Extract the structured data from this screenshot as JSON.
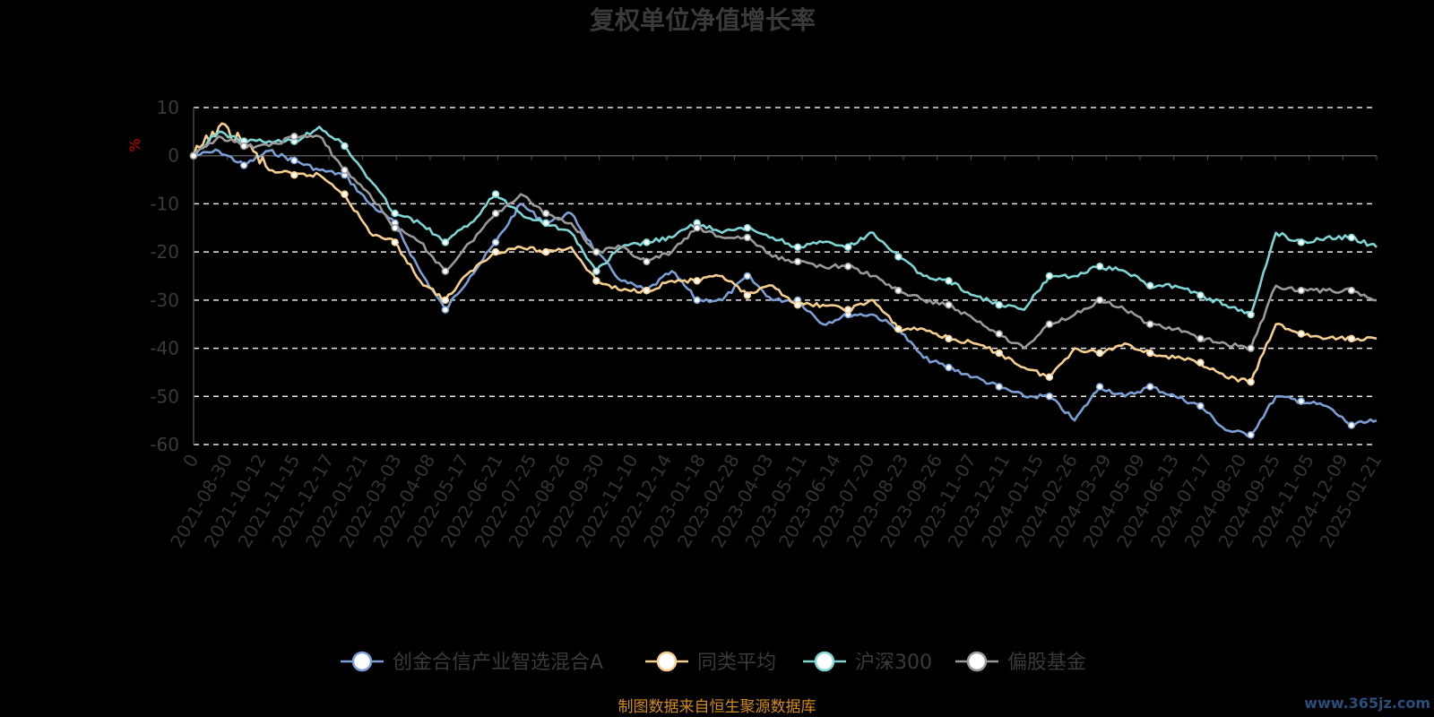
{
  "chart_data": {
    "type": "line",
    "title": "复权单位净值增长率",
    "y_unit": "%",
    "ylim": [
      -60,
      10
    ],
    "yticks": [
      10,
      0,
      -10,
      -20,
      -30,
      -40,
      -50,
      -60
    ],
    "grid": "horizontal dashed",
    "legend_position": "bottom-center",
    "x_tick_labels": [
      "0",
      "2021-08-30",
      "2021-10-12",
      "2021-11-15",
      "2021-12-17",
      "2022-01-21",
      "2022-03-03",
      "2022-04-08",
      "2022-05-17",
      "2022-06-21",
      "2022-07-25",
      "2022-08-26",
      "2022-09-30",
      "2022-11-10",
      "2022-12-14",
      "2023-01-18",
      "2023-02-28",
      "2023-04-03",
      "2023-05-11",
      "2023-06-14",
      "2023-07-20",
      "2023-08-23",
      "2023-09-26",
      "2023-11-07",
      "2023-12-11",
      "2024-01-15",
      "2024-02-26",
      "2024-03-29",
      "2024-05-09",
      "2024-06-13",
      "2024-07-17",
      "2024-08-20",
      "2024-09-25",
      "2024-11-05",
      "2024-12-09",
      "2025-01-21"
    ],
    "series": [
      {
        "name": "创金合信产业智选混合A",
        "color": "#7b9fd4",
        "values": [
          0,
          1,
          -2,
          1,
          -1,
          -3,
          -4,
          -10,
          -14,
          -24,
          -32,
          -25,
          -18,
          -10,
          -14,
          -12,
          -20,
          -26,
          -28,
          -24,
          -30,
          -30,
          -25,
          -30,
          -30,
          -35,
          -33,
          -33,
          -36,
          -42,
          -44,
          -46,
          -48,
          -50,
          -50,
          -55,
          -48,
          -50,
          -48,
          -50,
          -52,
          -57,
          -58,
          -50,
          -51,
          -52,
          -56,
          -55
        ]
      },
      {
        "name": "同类平均",
        "color": "#f5cf8f",
        "values": [
          0,
          6,
          3,
          -3,
          -4,
          -4,
          -8,
          -16,
          -18,
          -26,
          -30,
          -24,
          -20,
          -19,
          -20,
          -19,
          -26,
          -28,
          -28,
          -26,
          -26,
          -25,
          -29,
          -27,
          -31,
          -31,
          -32,
          -30,
          -36,
          -36,
          -38,
          -39,
          -41,
          -44,
          -46,
          -40,
          -41,
          -39,
          -41,
          -42,
          -43,
          -46,
          -47,
          -35,
          -37,
          -38,
          -38,
          -38
        ]
      },
      {
        "name": "沪深300",
        "color": "#7fd4d4",
        "values": [
          0,
          5,
          3,
          3,
          3,
          6,
          2,
          -5,
          -12,
          -14,
          -18,
          -14,
          -8,
          -12,
          -14,
          -16,
          -24,
          -19,
          -18,
          -17,
          -14,
          -16,
          -15,
          -17,
          -19,
          -18,
          -19,
          -16,
          -21,
          -25,
          -26,
          -29,
          -31,
          -32,
          -25,
          -25,
          -23,
          -24,
          -27,
          -27,
          -29,
          -31,
          -33,
          -16,
          -18,
          -17,
          -17,
          -19
        ]
      },
      {
        "name": "偏股基金",
        "color": "#999999",
        "values": [
          0,
          4,
          2,
          2,
          4,
          4,
          -3,
          -8,
          -15,
          -18,
          -24,
          -18,
          -12,
          -8,
          -12,
          -14,
          -20,
          -19,
          -22,
          -20,
          -15,
          -17,
          -17,
          -21,
          -22,
          -23,
          -23,
          -25,
          -28,
          -30,
          -31,
          -34,
          -37,
          -40,
          -35,
          -33,
          -30,
          -32,
          -35,
          -36,
          -38,
          -39,
          -40,
          -27,
          -28,
          -28,
          -28,
          -30
        ]
      }
    ]
  },
  "footer": {
    "source_text": "制图数据来自恒生聚源数据库",
    "watermark": "www.365jz.com"
  }
}
